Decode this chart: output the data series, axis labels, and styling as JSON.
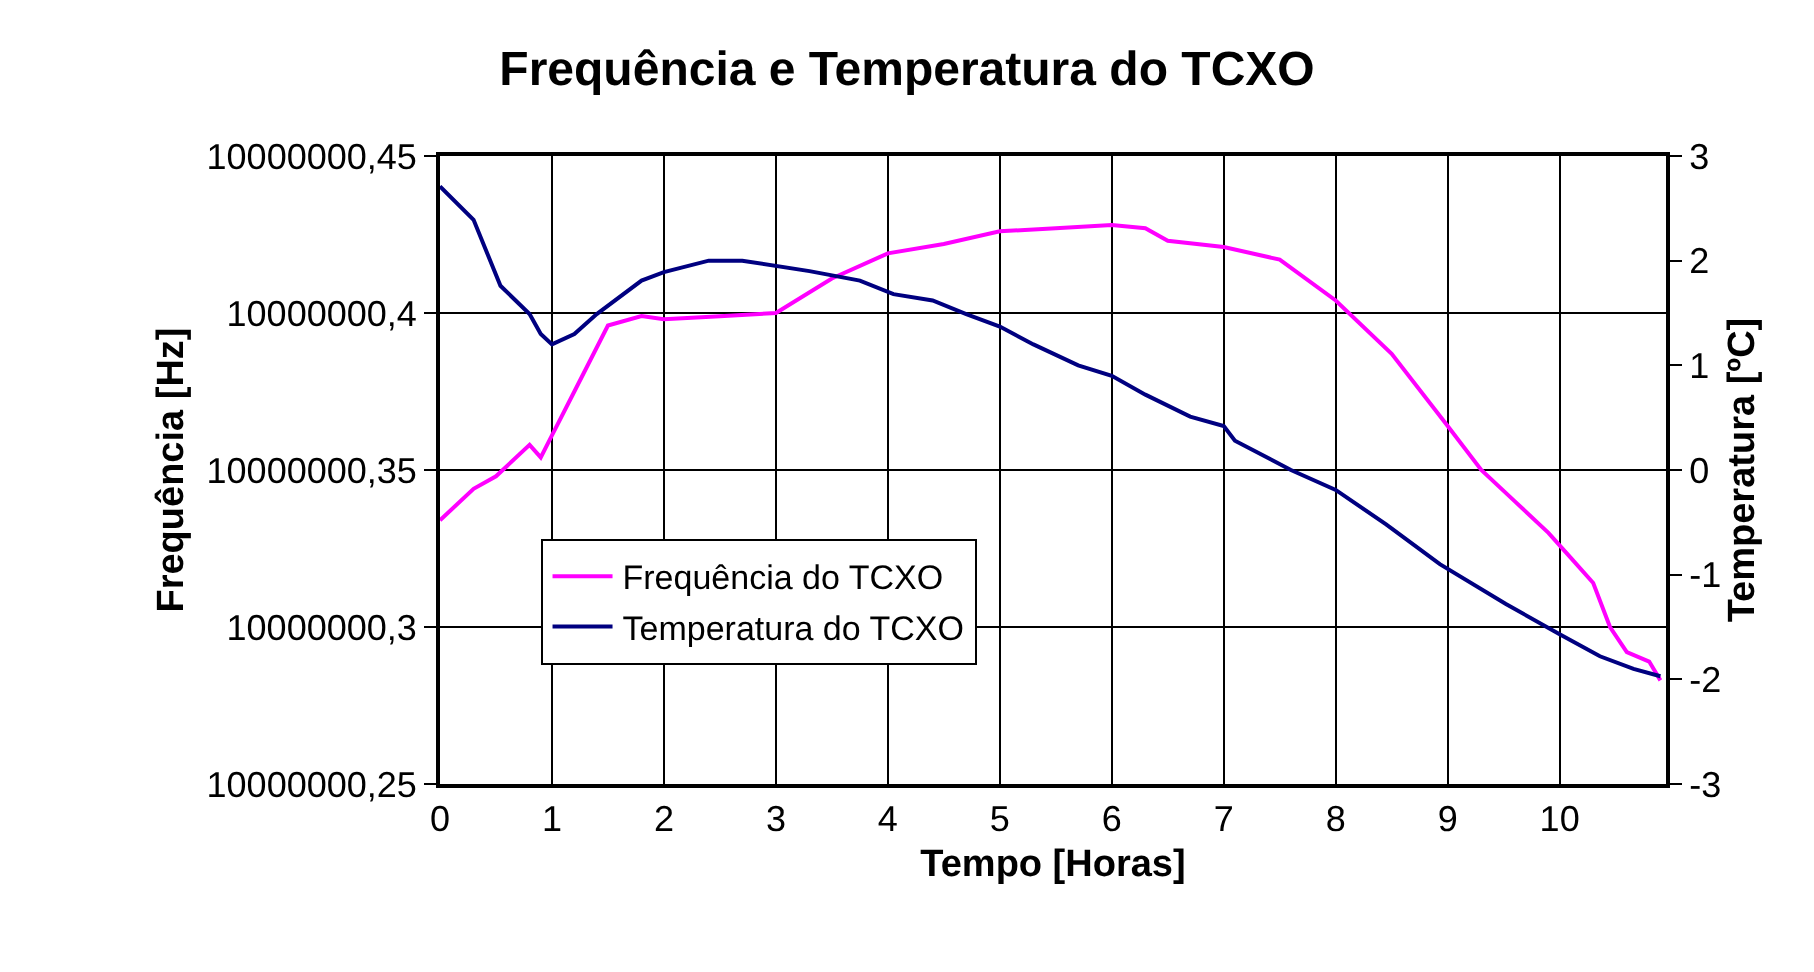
{
  "chart_data": {
    "type": "line",
    "title": "Frequência e Temperatura do TCXO",
    "xlabel": "Tempo [Horas]",
    "ylabel": "Frequência [Hz]",
    "y2label": "Temperatura [ºC]",
    "xlim": [
      0,
      10.95
    ],
    "xticks": [
      0,
      1,
      2,
      3,
      4,
      5,
      6,
      7,
      8,
      9,
      10
    ],
    "ylim": [
      10000000.25,
      10000000.45
    ],
    "yticks": [
      {
        "value": 10000000.25,
        "label": "10000000,25"
      },
      {
        "value": 10000000.3,
        "label": "10000000,3"
      },
      {
        "value": 10000000.35,
        "label": "10000000,35"
      },
      {
        "value": 10000000.4,
        "label": "10000000,4"
      },
      {
        "value": 10000000.45,
        "label": "10000000,45"
      }
    ],
    "y2lim": [
      -3,
      3
    ],
    "y2ticks": [
      -3,
      -2,
      -1,
      0,
      1,
      2,
      3
    ],
    "grid": true,
    "legend": "bottom left",
    "series": [
      {
        "name": "Frequência do TCXO",
        "color": "#ff00ff",
        "x": [
          0,
          0.3,
          0.5,
          0.8,
          0.9,
          1.0,
          1.2,
          1.5,
          1.8,
          2,
          2.5,
          3,
          3.5,
          4,
          4.5,
          5,
          5.5,
          6,
          6.3,
          6.5,
          7,
          7.5,
          8,
          8.5,
          9,
          9.3,
          9.6,
          9.9,
          10.1,
          10.3,
          10.45,
          10.6,
          10.8,
          10.9
        ],
        "values": [
          10000000.334,
          10000000.344,
          10000000.348,
          10000000.358,
          10000000.354,
          10000000.361,
          10000000.375,
          10000000.396,
          10000000.399,
          10000000.398,
          10000000.399,
          10000000.4,
          10000000.411,
          10000000.419,
          10000000.422,
          10000000.426,
          10000000.427,
          10000000.428,
          10000000.427,
          10000000.423,
          10000000.421,
          10000000.417,
          10000000.404,
          10000000.387,
          10000000.364,
          10000000.35,
          10000000.34,
          10000000.33,
          10000000.322,
          10000000.314,
          10000000.3,
          10000000.292,
          10000000.289,
          10000000.283
        ]
      },
      {
        "name": "Temperatura do TCXO",
        "color": "#000080",
        "axis": "y2",
        "x": [
          0,
          0.3,
          0.54,
          0.8,
          0.9,
          1.0,
          1.2,
          1.4,
          1.8,
          2,
          2.4,
          2.7,
          3.3,
          3.75,
          4.05,
          4.4,
          4.7,
          5.0,
          5.3,
          5.7,
          6.0,
          6.3,
          6.7,
          7.0,
          7.1,
          7.6,
          8.0,
          8.45,
          8.93,
          9.52,
          10.0,
          10.36,
          10.66,
          10.9
        ],
        "values": [
          2.71,
          2.39,
          1.76,
          1.49,
          1.3,
          1.2,
          1.3,
          1.49,
          1.81,
          1.89,
          2.0,
          2.0,
          1.9,
          1.81,
          1.68,
          1.62,
          1.49,
          1.37,
          1.2,
          1.0,
          0.9,
          0.72,
          0.51,
          0.42,
          0.28,
          0.0,
          -0.19,
          -0.52,
          -0.9,
          -1.28,
          -1.57,
          -1.78,
          -1.9,
          -1.97
        ]
      }
    ]
  }
}
